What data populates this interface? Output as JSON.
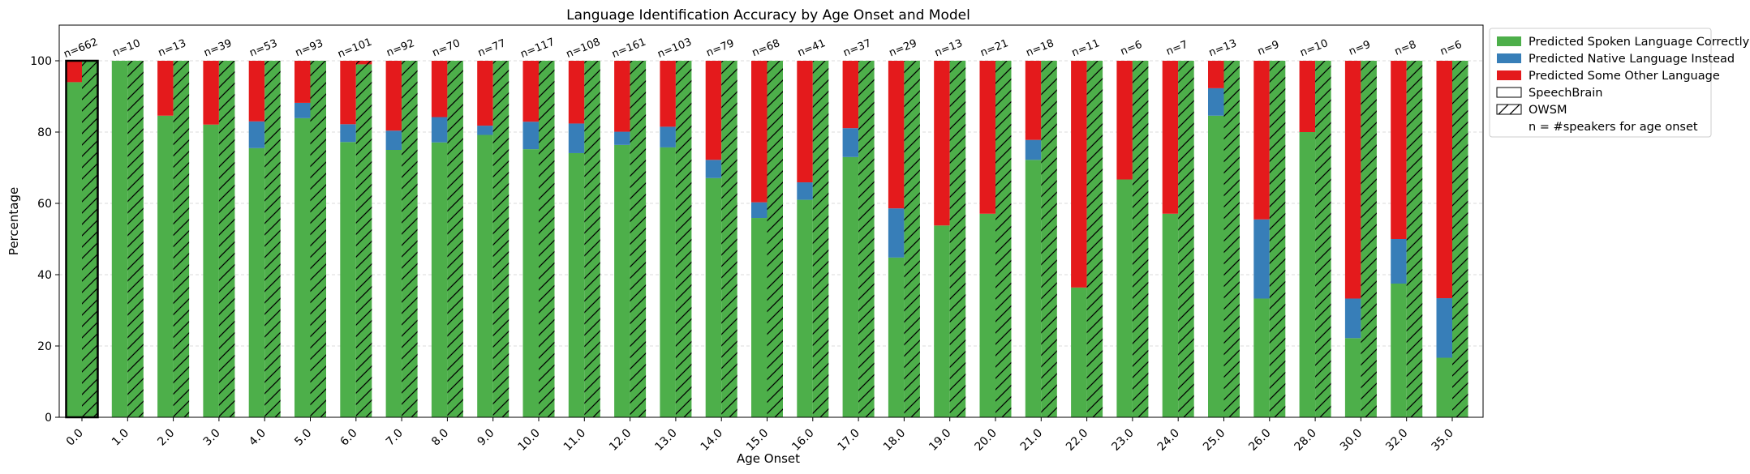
{
  "chart_data": {
    "type": "bar",
    "title": "Language Identification Accuracy by Age Onset and Model",
    "xlabel": "Age Onset",
    "ylabel": "Percentage",
    "ylim": [
      0,
      110
    ],
    "yticks": [
      0,
      20,
      40,
      60,
      80,
      100
    ],
    "grid": "horizontal dashed",
    "legend_placement": "outside right",
    "categories": [
      "0.0",
      "1.0",
      "2.0",
      "3.0",
      "4.0",
      "5.0",
      "6.0",
      "7.0",
      "8.0",
      "9.0",
      "10.0",
      "11.0",
      "12.0",
      "13.0",
      "14.0",
      "15.0",
      "16.0",
      "17.0",
      "18.0",
      "19.0",
      "20.0",
      "21.0",
      "22.0",
      "23.0",
      "24.0",
      "25.0",
      "26.0",
      "28.0",
      "30.0",
      "32.0",
      "35.0"
    ],
    "n_labels": [
      "n=662",
      "n=10",
      "n=13",
      "n=39",
      "n=53",
      "n=93",
      "n=101",
      "n=92",
      "n=70",
      "n=77",
      "n=117",
      "n=108",
      "n=161",
      "n=103",
      "n=79",
      "n=68",
      "n=41",
      "n=37",
      "n=29",
      "n=13",
      "n=21",
      "n=18",
      "n=11",
      "n=6",
      "n=7",
      "n=13",
      "n=9",
      "n=10",
      "n=9",
      "n=8",
      "n=6"
    ],
    "models": [
      {
        "name": "SpeechBrain",
        "hatch": "none",
        "series": [
          {
            "name": "Predicted Spoken Language Correctly",
            "values": [
              94,
              100,
              84.6,
              82.1,
              75.5,
              83.9,
              77.2,
              75,
              77.1,
              79.2,
              75.2,
              74.1,
              76.4,
              75.7,
              67.1,
              55.9,
              61,
              73,
              44.8,
              53.8,
              57.1,
              72.2,
              36.4,
              66.7,
              57.1,
              84.6,
              33.3,
              80,
              22.2,
              37.5,
              16.7
            ]
          },
          {
            "name": "Predicted Native Language Instead",
            "values": [
              0,
              0,
              0,
              0,
              7.5,
              4.3,
              5,
              5.4,
              7.1,
              2.6,
              7.7,
              8.3,
              3.7,
              5.8,
              5.1,
              4.4,
              4.9,
              8.1,
              13.8,
              0,
              0,
              5.6,
              0,
              0,
              0,
              7.7,
              22.2,
              0,
              11.1,
              12.5,
              16.7
            ]
          },
          {
            "name": "Predicted Some Other Language",
            "values": [
              6,
              0,
              15.4,
              17.9,
              17,
              11.8,
              17.8,
              19.6,
              15.8,
              18.2,
              17.1,
              17.6,
              19.9,
              18.5,
              27.8,
              39.7,
              34.1,
              18.9,
              41.4,
              46.2,
              42.9,
              22.2,
              63.6,
              33.3,
              42.9,
              7.7,
              44.5,
              20,
              66.7,
              50,
              66.6
            ]
          }
        ]
      },
      {
        "name": "OWSM",
        "hatch": "diagonal",
        "series": [
          {
            "name": "Predicted Spoken Language Correctly",
            "values": [
              100,
              100,
              100,
              100,
              100,
              100,
              99,
              100,
              100,
              100,
              100,
              100,
              100,
              100,
              100,
              100,
              100,
              100,
              100,
              100,
              100,
              100,
              100,
              100,
              100,
              100,
              100,
              100,
              100,
              100,
              100
            ]
          },
          {
            "name": "Predicted Native Language Instead",
            "values": [
              0,
              0,
              0,
              0,
              0,
              0,
              0,
              0,
              0,
              0,
              0,
              0,
              0,
              0,
              0,
              0,
              0,
              0,
              0,
              0,
              0,
              0,
              0,
              0,
              0,
              0,
              0,
              0,
              0,
              0,
              0
            ]
          },
          {
            "name": "Predicted Some Other Language",
            "values": [
              0,
              0,
              0,
              0,
              0,
              0,
              1,
              0,
              0,
              0,
              0,
              0,
              0,
              0,
              0,
              0,
              0,
              0,
              0,
              0,
              0,
              0,
              0,
              0,
              0,
              0,
              0,
              0,
              0,
              0,
              0
            ]
          }
        ]
      }
    ],
    "colors": {
      "correct": "#4daf4a",
      "native": "#377eb8",
      "other": "#e41a1c"
    },
    "legend": [
      {
        "label": "Predicted Spoken Language Correctly",
        "swatch": "correct"
      },
      {
        "label": "Predicted Native Language Instead",
        "swatch": "native"
      },
      {
        "label": "Predicted Some Other Language",
        "swatch": "other"
      },
      {
        "label": "SpeechBrain",
        "swatch": "plain"
      },
      {
        "label": "OWSM",
        "swatch": "hatched"
      },
      {
        "label": "n = #speakers for age onset",
        "swatch": "none"
      }
    ],
    "highlighted_category": "0.0"
  }
}
